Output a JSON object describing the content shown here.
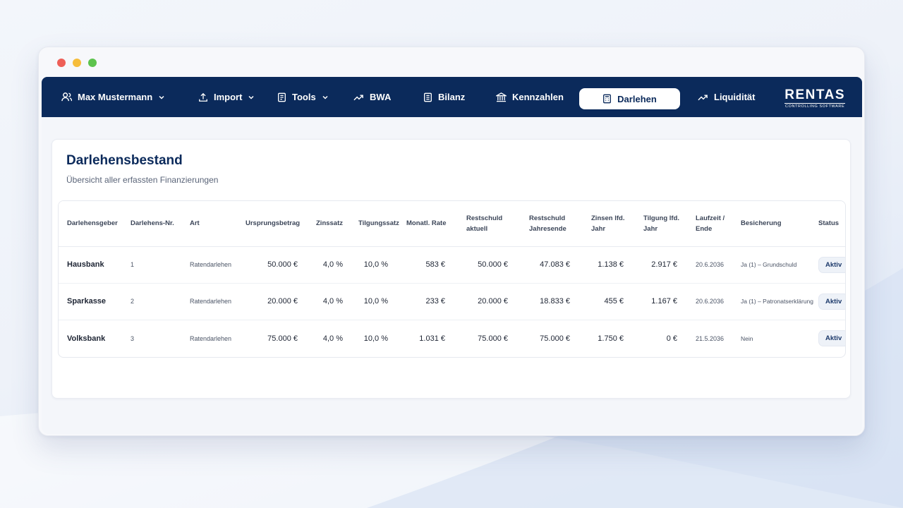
{
  "nav": {
    "user": "Max Mustermann",
    "items": [
      {
        "id": "import",
        "label": "Import"
      },
      {
        "id": "tools",
        "label": "Tools"
      },
      {
        "id": "bwa",
        "label": "BWA"
      },
      {
        "id": "bilanz",
        "label": "Bilanz"
      },
      {
        "id": "kennzahlen",
        "label": "Kennzahlen"
      },
      {
        "id": "darlehen",
        "label": "Darlehen"
      },
      {
        "id": "liquiditaet",
        "label": "Liquidität"
      }
    ],
    "active": "darlehen"
  },
  "logo": {
    "main": "RENTAS",
    "sub": "CONTROLLING SOFTWARE"
  },
  "colors": {
    "navbar": "#0b2a5b",
    "dot_red": "#ee5f57",
    "dot_yellow": "#f6bd3b",
    "dot_green": "#5dc34d"
  },
  "card": {
    "title": "Darlehensbestand",
    "subtitle": "Übersicht aller erfassten Finanzierungen"
  },
  "table": {
    "columns": [
      {
        "line1": "Darlehensgeber",
        "line2": ""
      },
      {
        "line1": "Darlehens-Nr.",
        "line2": ""
      },
      {
        "line1": "Art",
        "line2": ""
      },
      {
        "line1": "Ursprungsbetrag",
        "line2": ""
      },
      {
        "line1": "Zinssatz",
        "line2": ""
      },
      {
        "line1": "Tilgungssatz",
        "line2": ""
      },
      {
        "line1": "Monatl. Rate",
        "line2": ""
      },
      {
        "line1": "Restschuld",
        "line2": "aktuell"
      },
      {
        "line1": "Restschuld",
        "line2": "Jahresende"
      },
      {
        "line1": "Zinsen lfd.",
        "line2": "Jahr"
      },
      {
        "line1": "Tilgung lfd.",
        "line2": "Jahr"
      },
      {
        "line1": "Laufzeit /",
        "line2": "Ende"
      },
      {
        "line1": "Besicherung",
        "line2": ""
      },
      {
        "line1": "Status",
        "line2": ""
      }
    ],
    "rows": [
      {
        "geber": "Hausbank",
        "nr": "1",
        "art": "Ratendarlehen",
        "ursprung": "50.000 €",
        "zins": "4,0 %",
        "tilgung": "10,0 %",
        "rate": "583 €",
        "rest_aktuell": "50.000 €",
        "rest_jahresende": "47.083 €",
        "zinsen_jahr": "1.138 €",
        "tilgung_jahr": "2.917 €",
        "ende": "20.6.2036",
        "besicherung": "Ja (1) – Grundschuld",
        "status": "Aktiv"
      },
      {
        "geber": "Sparkasse",
        "nr": "2",
        "art": "Ratendarlehen",
        "ursprung": "20.000 €",
        "zins": "4,0 %",
        "tilgung": "10,0 %",
        "rate": "233 €",
        "rest_aktuell": "20.000 €",
        "rest_jahresende": "18.833 €",
        "zinsen_jahr": "455 €",
        "tilgung_jahr": "1.167 €",
        "ende": "20.6.2036",
        "besicherung": "Ja (1) – Patronatserklärung",
        "status": "Aktiv"
      },
      {
        "geber": "Volksbank",
        "nr": "3",
        "art": "Ratendarlehen",
        "ursprung": "75.000 €",
        "zins": "4,0 %",
        "tilgung": "10,0 %",
        "rate": "1.031 €",
        "rest_aktuell": "75.000 €",
        "rest_jahresende": "75.000 €",
        "zinsen_jahr": "1.750 €",
        "tilgung_jahr": "0 €",
        "ende": "21.5.2036",
        "besicherung": "Nein",
        "status": "Aktiv"
      }
    ]
  }
}
